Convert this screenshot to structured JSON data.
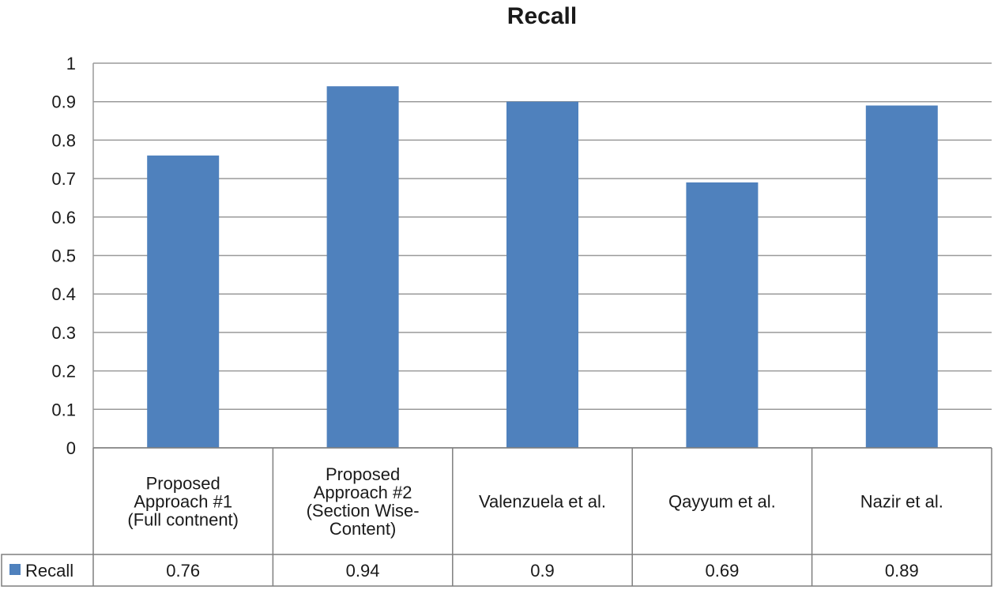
{
  "chart_data": {
    "type": "bar",
    "title": "Recall",
    "categories": [
      [
        "Proposed",
        "Approach #1",
        "(Full contnent)"
      ],
      [
        "Proposed",
        "Approach #2",
        "(Section Wise-",
        "Content)"
      ],
      [
        "Valenzuela et al."
      ],
      [
        "Qayyum et al."
      ],
      [
        "Nazir et al."
      ]
    ],
    "series": [
      {
        "name": "Recall",
        "values": [
          0.76,
          0.94,
          0.9,
          0.69,
          0.89
        ],
        "value_labels": [
          "0.76",
          "0.94",
          "0.9",
          "0.69",
          "0.89"
        ],
        "color": "#4f81bd"
      }
    ],
    "ylim": [
      0,
      1
    ],
    "yticks": [
      "0",
      "0.1",
      "0.2",
      "0.3",
      "0.4",
      "0.5",
      "0.6",
      "0.7",
      "0.8",
      "0.9",
      "1"
    ],
    "grid": true,
    "legend": "data-table",
    "xlabel": "",
    "ylabel": ""
  }
}
